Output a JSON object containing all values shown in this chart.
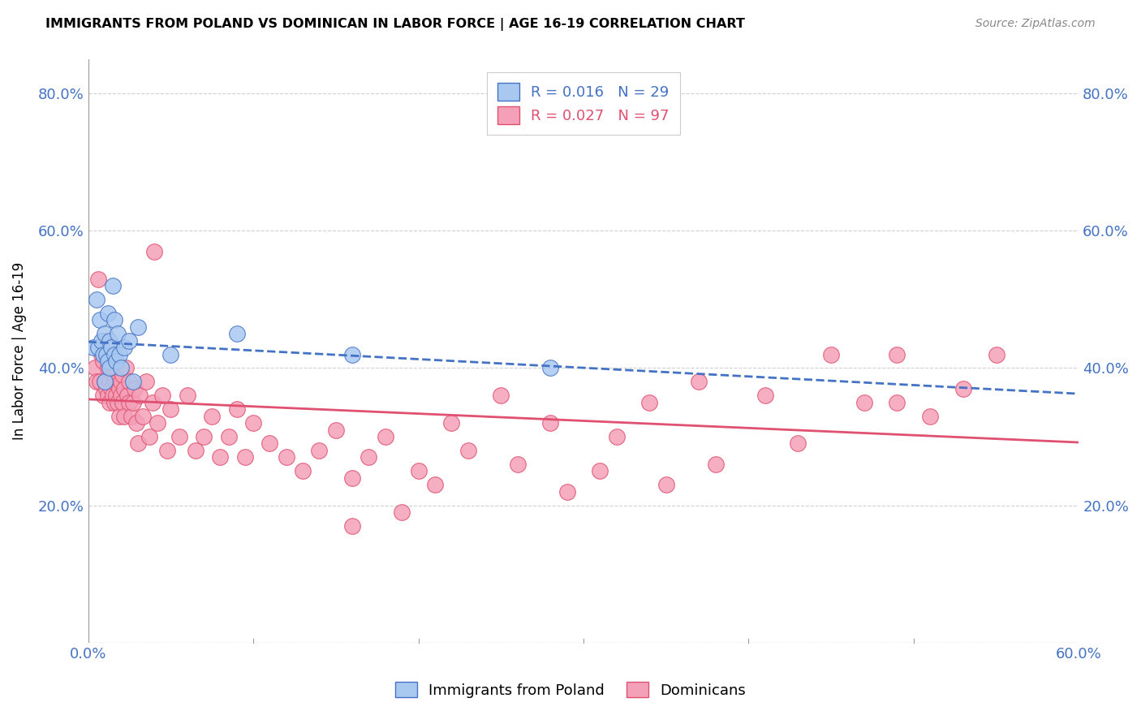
{
  "title": "IMMIGRANTS FROM POLAND VS DOMINICAN IN LABOR FORCE | AGE 16-19 CORRELATION CHART",
  "source": "Source: ZipAtlas.com",
  "ylabel": "In Labor Force | Age 16-19",
  "xlim": [
    0.0,
    0.6
  ],
  "ylim": [
    0.0,
    0.85
  ],
  "xticks": [
    0.0,
    0.1,
    0.2,
    0.3,
    0.4,
    0.5,
    0.6
  ],
  "yticks": [
    0.0,
    0.2,
    0.4,
    0.6,
    0.8
  ],
  "xticklabels": [
    "0.0%",
    "",
    "",
    "",
    "",
    "",
    "60.0%"
  ],
  "yticklabels": [
    "",
    "20.0%",
    "40.0%",
    "60.0%",
    "80.0%"
  ],
  "legend_label1": "Immigrants from Poland",
  "legend_label2": "Dominicans",
  "color_poland": "#a8c8f0",
  "color_dominican": "#f4a0b8",
  "color_line_poland": "#4472c4",
  "color_line_dominican": "#e05070",
  "color_axis_text": "#4472c4",
  "poland_x": [
    0.003,
    0.005,
    0.006,
    0.007,
    0.008,
    0.009,
    0.01,
    0.01,
    0.011,
    0.012,
    0.012,
    0.013,
    0.013,
    0.014,
    0.015,
    0.016,
    0.016,
    0.017,
    0.018,
    0.019,
    0.02,
    0.022,
    0.025,
    0.027,
    0.03,
    0.05,
    0.09,
    0.16,
    0.28
  ],
  "poland_y": [
    0.43,
    0.5,
    0.43,
    0.47,
    0.44,
    0.42,
    0.45,
    0.38,
    0.42,
    0.48,
    0.41,
    0.44,
    0.4,
    0.43,
    0.52,
    0.42,
    0.47,
    0.41,
    0.45,
    0.42,
    0.4,
    0.43,
    0.44,
    0.38,
    0.46,
    0.42,
    0.45,
    0.42,
    0.4
  ],
  "dominican_x": [
    0.004,
    0.005,
    0.006,
    0.007,
    0.008,
    0.009,
    0.009,
    0.01,
    0.01,
    0.011,
    0.011,
    0.012,
    0.012,
    0.013,
    0.013,
    0.013,
    0.014,
    0.014,
    0.015,
    0.015,
    0.016,
    0.016,
    0.016,
    0.017,
    0.017,
    0.018,
    0.018,
    0.019,
    0.019,
    0.02,
    0.02,
    0.021,
    0.021,
    0.022,
    0.022,
    0.023,
    0.024,
    0.025,
    0.025,
    0.026,
    0.027,
    0.028,
    0.029,
    0.03,
    0.031,
    0.033,
    0.035,
    0.037,
    0.039,
    0.04,
    0.042,
    0.045,
    0.048,
    0.05,
    0.055,
    0.06,
    0.065,
    0.07,
    0.075,
    0.08,
    0.085,
    0.09,
    0.095,
    0.1,
    0.11,
    0.12,
    0.13,
    0.14,
    0.15,
    0.16,
    0.17,
    0.18,
    0.2,
    0.21,
    0.23,
    0.26,
    0.29,
    0.32,
    0.35,
    0.38,
    0.41,
    0.43,
    0.45,
    0.47,
    0.49,
    0.51,
    0.53,
    0.55,
    0.49,
    0.37,
    0.34,
    0.31,
    0.28,
    0.25,
    0.22,
    0.19,
    0.16
  ],
  "dominican_y": [
    0.4,
    0.38,
    0.53,
    0.38,
    0.42,
    0.36,
    0.41,
    0.38,
    0.44,
    0.37,
    0.42,
    0.36,
    0.4,
    0.38,
    0.35,
    0.43,
    0.37,
    0.41,
    0.36,
    0.39,
    0.35,
    0.38,
    0.42,
    0.36,
    0.4,
    0.35,
    0.38,
    0.37,
    0.33,
    0.38,
    0.36,
    0.39,
    0.35,
    0.37,
    0.33,
    0.4,
    0.36,
    0.35,
    0.38,
    0.33,
    0.35,
    0.37,
    0.32,
    0.29,
    0.36,
    0.33,
    0.38,
    0.3,
    0.35,
    0.57,
    0.32,
    0.36,
    0.28,
    0.34,
    0.3,
    0.36,
    0.28,
    0.3,
    0.33,
    0.27,
    0.3,
    0.34,
    0.27,
    0.32,
    0.29,
    0.27,
    0.25,
    0.28,
    0.31,
    0.24,
    0.27,
    0.3,
    0.25,
    0.23,
    0.28,
    0.26,
    0.22,
    0.3,
    0.23,
    0.26,
    0.36,
    0.29,
    0.42,
    0.35,
    0.42,
    0.33,
    0.37,
    0.42,
    0.35,
    0.38,
    0.35,
    0.25,
    0.32,
    0.36,
    0.32,
    0.19,
    0.17
  ]
}
